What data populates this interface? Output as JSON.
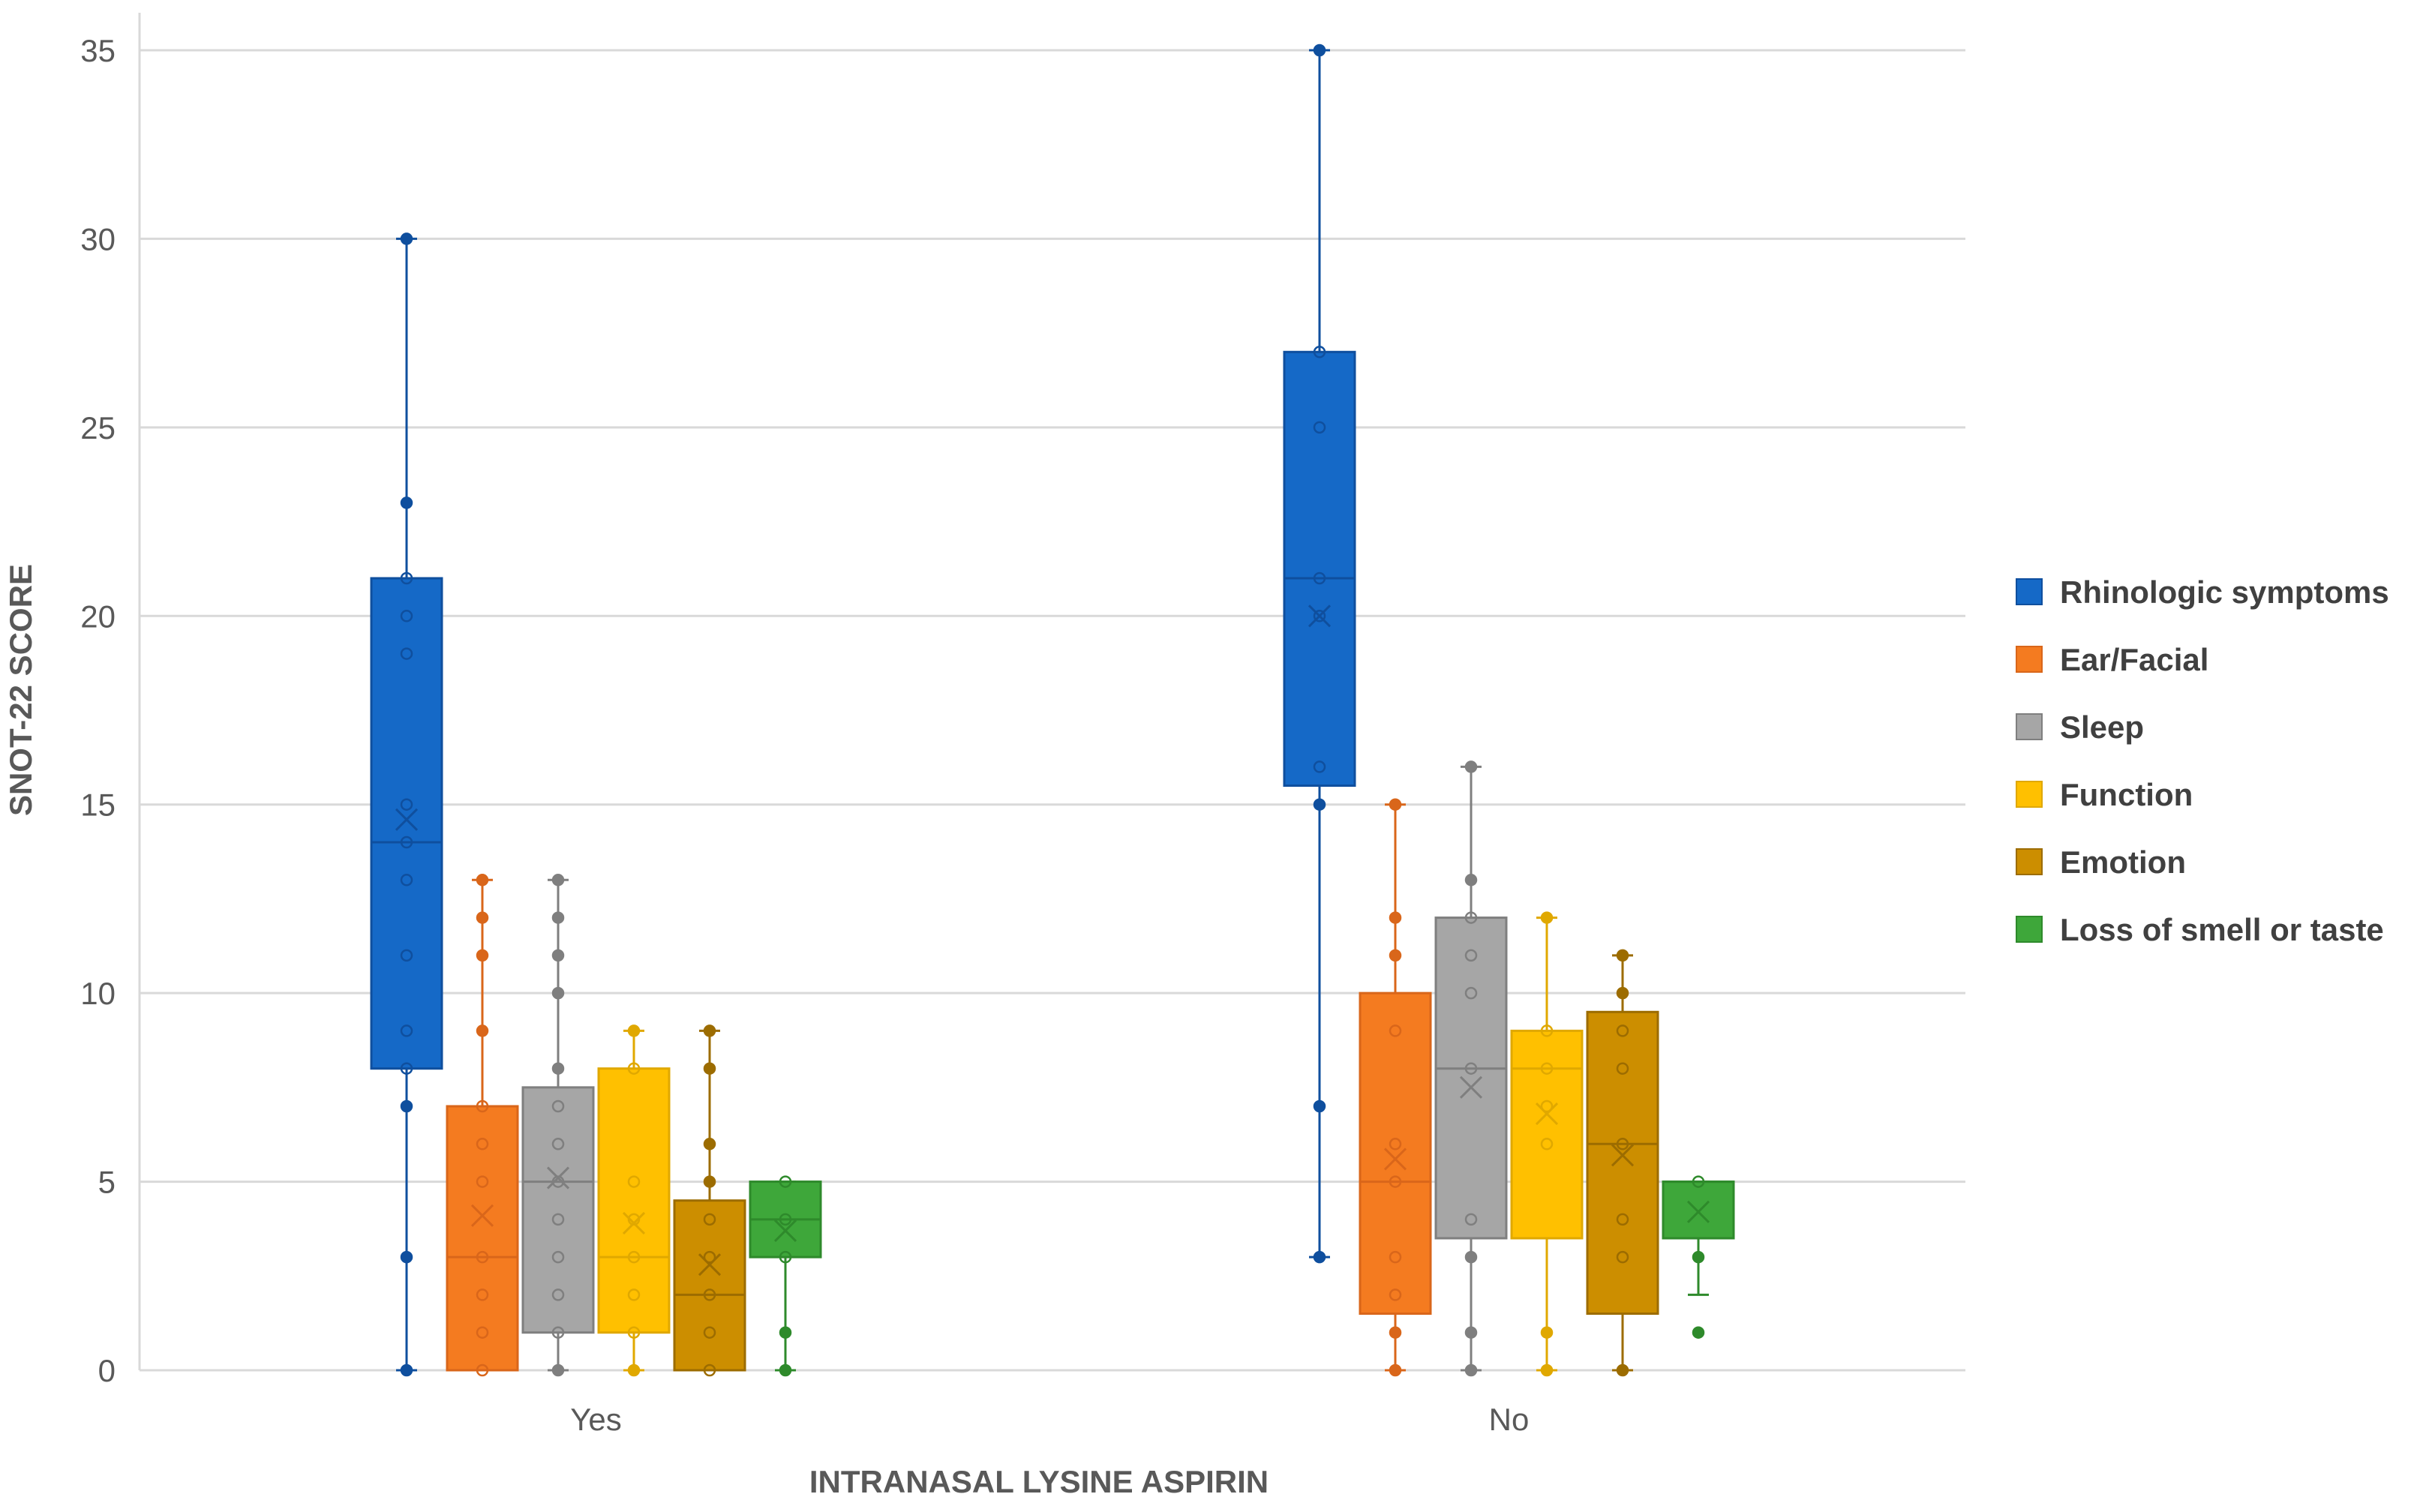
{
  "chart_data": {
    "type": "box",
    "title": "",
    "xlabel": "INTRANASAL LYSINE ASPIRIN",
    "ylabel": "SNOT-22 SCORE",
    "ylim": [
      0,
      35
    ],
    "yticks": [
      0,
      5,
      10,
      15,
      20,
      25,
      30,
      35
    ],
    "grid": true,
    "legend_position": "right",
    "categories": [
      "Yes",
      "No"
    ],
    "series": [
      {
        "name": "Rhinologic symptoms",
        "color": "#1569C7",
        "stroke": "#0F4F9E",
        "boxes": [
          {
            "category": "Yes",
            "min": 0,
            "q1": 8,
            "median": 14,
            "q3": 21,
            "max": 30,
            "mean": 14.6,
            "points": [
              0,
              3,
              7,
              8,
              9,
              11,
              13,
              14,
              15,
              19,
              20,
              21,
              23,
              30
            ]
          },
          {
            "category": "No",
            "min": 3,
            "q1": 15.5,
            "median": 21,
            "q3": 27,
            "max": 35,
            "mean": 20,
            "points": [
              3,
              7,
              15,
              16,
              20,
              21,
              25,
              27,
              35
            ]
          }
        ]
      },
      {
        "name": "Ear/Facial",
        "color": "#F47B20",
        "stroke": "#D9661A",
        "boxes": [
          {
            "category": "Yes",
            "min": 0,
            "q1": 0,
            "median": 3,
            "q3": 7,
            "max": 13,
            "mean": 4.1,
            "points": [
              0,
              1,
              2,
              3,
              5,
              6,
              7,
              9,
              11,
              12,
              13
            ]
          },
          {
            "category": "No",
            "min": 0,
            "q1": 1.5,
            "median": 5,
            "q3": 10,
            "max": 15,
            "mean": 5.6,
            "points": [
              0,
              1,
              2,
              3,
              5,
              6,
              9,
              11,
              12,
              15
            ]
          }
        ]
      },
      {
        "name": "Sleep",
        "color": "#A6A6A6",
        "stroke": "#7F7F7F",
        "boxes": [
          {
            "category": "Yes",
            "min": 0,
            "q1": 1,
            "median": 5,
            "q3": 7.5,
            "max": 13,
            "mean": 5.1,
            "points": [
              0,
              1,
              2,
              3,
              4,
              5,
              6,
              7,
              8,
              10,
              11,
              12,
              13
            ]
          },
          {
            "category": "No",
            "min": 0,
            "q1": 3.5,
            "median": 8,
            "q3": 12,
            "max": 16,
            "mean": 7.5,
            "points": [
              0,
              1,
              3,
              4,
              8,
              10,
              11,
              12,
              13,
              16
            ]
          }
        ]
      },
      {
        "name": "Function",
        "color": "#FFC000",
        "stroke": "#E0A800",
        "boxes": [
          {
            "category": "Yes",
            "min": 0,
            "q1": 1,
            "median": 3,
            "q3": 8,
            "max": 9,
            "mean": 3.9,
            "points": [
              0,
              1,
              2,
              3,
              4,
              5,
              8,
              9
            ]
          },
          {
            "category": "No",
            "min": 0,
            "q1": 3.5,
            "median": 8,
            "q3": 9,
            "max": 12,
            "mean": 6.8,
            "points": [
              0,
              1,
              6,
              7,
              8,
              9,
              12
            ]
          }
        ]
      },
      {
        "name": "Emotion",
        "color": "#CC8E00",
        "stroke": "#9C6C00",
        "boxes": [
          {
            "category": "Yes",
            "min": 0,
            "q1": 0,
            "median": 2,
            "q3": 4.5,
            "max": 9,
            "mean": 2.8,
            "points": [
              0,
              1,
              2,
              3,
              4,
              5,
              6,
              8,
              9
            ]
          },
          {
            "category": "No",
            "min": 0,
            "q1": 1.5,
            "median": 6,
            "q3": 9.5,
            "max": 11,
            "mean": 5.7,
            "points": [
              0,
              3,
              4,
              6,
              8,
              9,
              10,
              11
            ]
          }
        ]
      },
      {
        "name": "Loss of smell or taste",
        "color": "#3EA73A",
        "stroke": "#2E8A2B",
        "boxes": [
          {
            "category": "Yes",
            "min": 0,
            "q1": 3,
            "median": 4,
            "q3": 5,
            "max": 5,
            "mean": 3.7,
            "points": [
              0,
              1,
              3,
              4,
              5
            ]
          },
          {
            "category": "No",
            "min": 2,
            "q1": 3.5,
            "median": 5,
            "q3": 5,
            "max": 5,
            "mean": 4.2,
            "points": [
              1,
              3,
              5
            ]
          }
        ]
      }
    ]
  }
}
